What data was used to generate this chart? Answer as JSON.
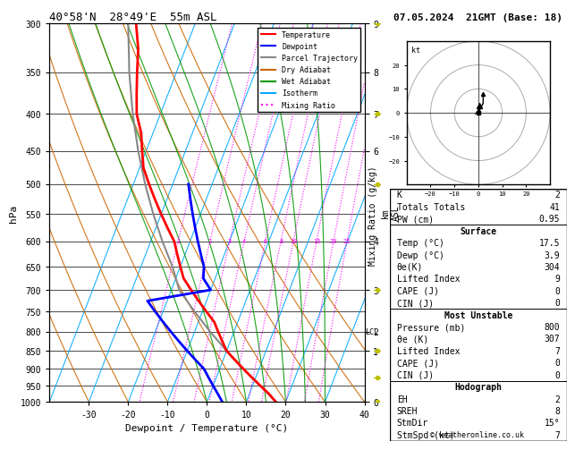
{
  "title_left": "40°58'N  28°49'E  55m ASL",
  "title_right": "07.05.2024  21GMT (Base: 18)",
  "xlabel": "Dewpoint / Temperature (°C)",
  "ylabel_left": "hPa",
  "pressure_levels": [
    300,
    350,
    400,
    450,
    500,
    550,
    600,
    650,
    700,
    750,
    800,
    850,
    900,
    950,
    1000
  ],
  "isotherms": [
    -40,
    -30,
    -20,
    -10,
    0,
    10,
    20,
    30,
    40
  ],
  "dry_adiabats_temps": [
    -40,
    -30,
    -20,
    -10,
    0,
    10,
    20,
    30,
    40,
    50
  ],
  "wet_adiabats_temps": [
    0,
    5,
    10,
    15,
    20,
    25,
    30
  ],
  "mixing_ratios": [
    1,
    2,
    3,
    4,
    6,
    8,
    10,
    15,
    20,
    25
  ],
  "temperature_profile": {
    "pressure": [
      1000,
      975,
      950,
      925,
      900,
      875,
      850,
      825,
      800,
      775,
      750,
      725,
      700,
      675,
      650,
      625,
      600,
      575,
      550,
      525,
      500,
      475,
      450,
      425,
      400,
      375,
      350,
      325,
      300
    ],
    "temp": [
      17.5,
      15,
      12,
      9,
      6,
      3,
      0,
      -2,
      -4,
      -6,
      -9,
      -12,
      -15,
      -18,
      -20,
      -22,
      -24,
      -27,
      -30,
      -33,
      -36,
      -39,
      -41,
      -43,
      -46,
      -48,
      -50,
      -52,
      -55
    ]
  },
  "dewpoint_profile": {
    "pressure": [
      1000,
      975,
      950,
      925,
      900,
      875,
      850,
      825,
      800,
      775,
      750,
      725,
      700,
      675,
      650,
      625,
      600,
      575,
      550,
      525,
      500
    ],
    "dewp": [
      3.9,
      2,
      0,
      -2,
      -4,
      -7,
      -10,
      -13,
      -16,
      -19,
      -22,
      -25,
      -10,
      -13,
      -14,
      -16,
      -18,
      -20,
      -22,
      -24,
      -26
    ]
  },
  "parcel_profile": {
    "pressure": [
      1000,
      950,
      900,
      850,
      800,
      750,
      700,
      650,
      600,
      550,
      500,
      450,
      400,
      350,
      300
    ],
    "temp": [
      17.5,
      12,
      6,
      0,
      -6,
      -12,
      -18,
      -22,
      -27,
      -32,
      -37,
      -42,
      -47,
      -52,
      -57
    ]
  },
  "lcl_pressure": 800,
  "colors": {
    "temperature": "#ff0000",
    "dewpoint": "#0000ff",
    "parcel": "#888888",
    "dry_adiabat": "#cc6600",
    "wet_adiabat": "#009900",
    "isotherm": "#00aaff",
    "mixing_ratio": "#ff00ff",
    "background": "#ffffff"
  },
  "legend_items": [
    {
      "label": "Temperature",
      "color": "#ff0000",
      "style": "-"
    },
    {
      "label": "Dewpoint",
      "color": "#0000ff",
      "style": "-"
    },
    {
      "label": "Parcel Trajectory",
      "color": "#888888",
      "style": "-"
    },
    {
      "label": "Dry Adiabat",
      "color": "#cc6600",
      "style": "-"
    },
    {
      "label": "Wet Adiabat",
      "color": "#009900",
      "style": "-"
    },
    {
      "label": "Isotherm",
      "color": "#00aaff",
      "style": "-"
    },
    {
      "label": "Mixing Ratio",
      "color": "#ff00ff",
      "style": ":"
    }
  ],
  "table_rows": [
    {
      "label": "K",
      "value": "2",
      "header": false
    },
    {
      "label": "Totals Totals",
      "value": "41",
      "header": false
    },
    {
      "label": "PW (cm)",
      "value": "0.95",
      "header": false
    },
    {
      "label": "Surface",
      "value": "",
      "header": true
    },
    {
      "label": "Temp (°C)",
      "value": "17.5",
      "header": false
    },
    {
      "label": "Dewp (°C)",
      "value": "3.9",
      "header": false
    },
    {
      "label": "θe(K)",
      "value": "304",
      "header": false
    },
    {
      "label": "Lifted Index",
      "value": "9",
      "header": false
    },
    {
      "label": "CAPE (J)",
      "value": "0",
      "header": false
    },
    {
      "label": "CIN (J)",
      "value": "0",
      "header": false
    },
    {
      "label": "Most Unstable",
      "value": "",
      "header": true
    },
    {
      "label": "Pressure (mb)",
      "value": "800",
      "header": false
    },
    {
      "label": "θe (K)",
      "value": "307",
      "header": false
    },
    {
      "label": "Lifted Index",
      "value": "7",
      "header": false
    },
    {
      "label": "CAPE (J)",
      "value": "0",
      "header": false
    },
    {
      "label": "CIN (J)",
      "value": "0",
      "header": false
    },
    {
      "label": "Hodograph",
      "value": "",
      "header": true
    },
    {
      "label": "EH",
      "value": "2",
      "header": false
    },
    {
      "label": "SREH",
      "value": "8",
      "header": false
    },
    {
      "label": "StmDir",
      "value": "15°",
      "header": false
    },
    {
      "label": "StmSpd (kt)",
      "value": "7",
      "header": false
    }
  ],
  "copyright": "© weatheronline.co.uk"
}
